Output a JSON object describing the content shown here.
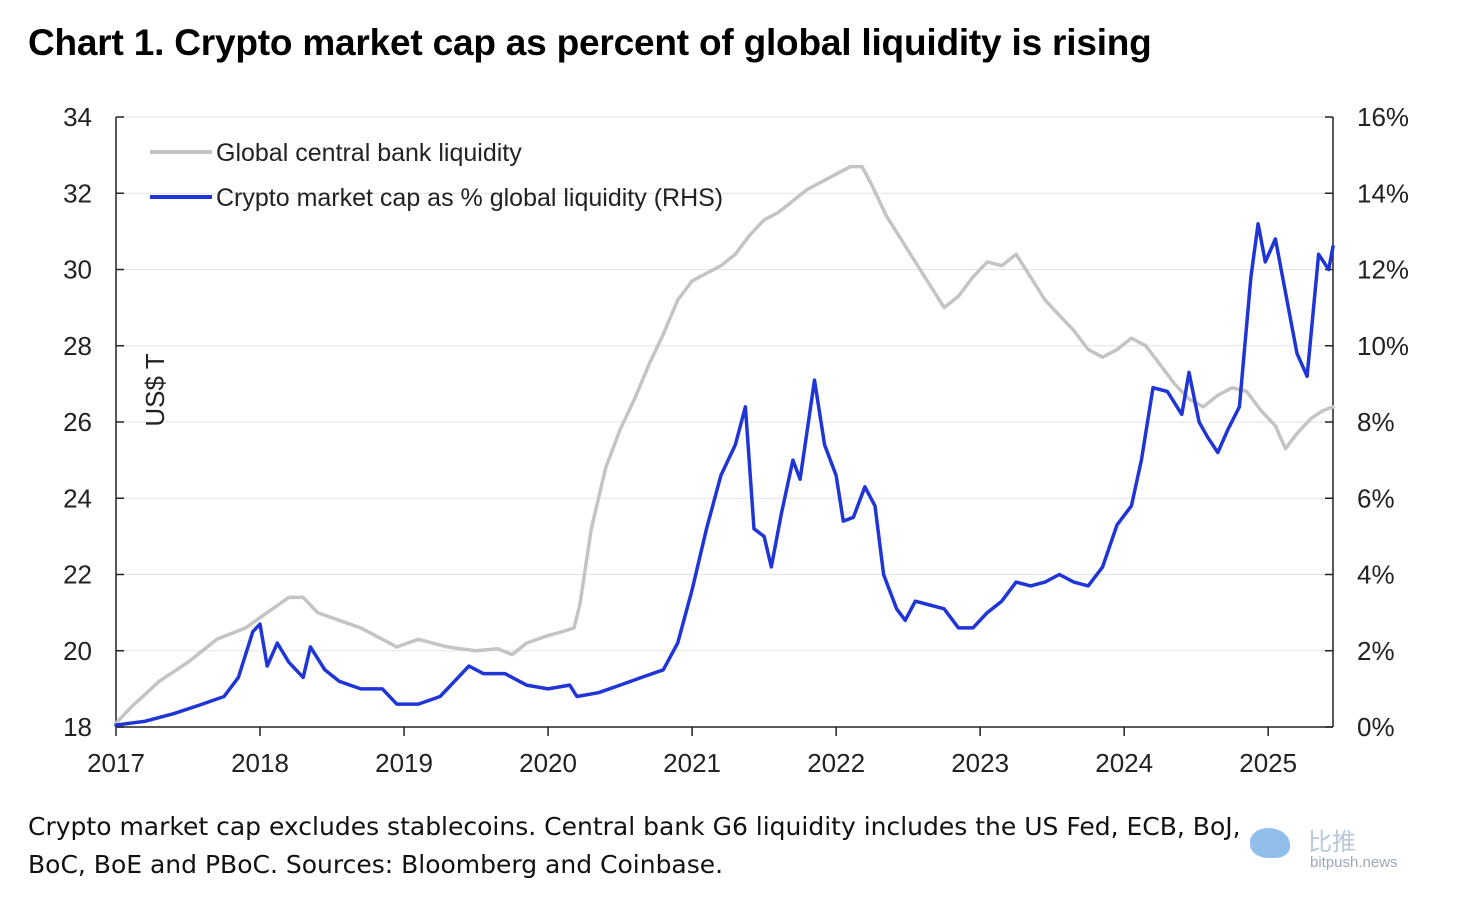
{
  "title": "Chart 1. Crypto market cap as percent of global liquidity is rising",
  "note_line1": "Crypto market cap excludes stablecoins. Central bank G6 liquidity includes the US Fed, ECB, BoJ,",
  "note_line2": "BoC, BoE and PBoC. Sources: Bloomberg and Coinbase.",
  "watermark": {
    "cn": "比推",
    "en": "bitpush.news"
  },
  "chart_data": {
    "type": "line",
    "title": "Chart 1. Crypto market cap as percent of global liquidity is rising",
    "xlabel": "",
    "ylabel_left": "US$ T",
    "ylabel_right": "",
    "x_range": [
      2017.0,
      2025.45
    ],
    "ylim_left": [
      18,
      34
    ],
    "ylim_right": [
      0,
      16
    ],
    "x_ticks": [
      2017,
      2018,
      2019,
      2020,
      2021,
      2022,
      2023,
      2024,
      2025
    ],
    "x_tick_labels": [
      "2017",
      "2018",
      "2019",
      "2020",
      "2021",
      "2022",
      "2023",
      "2024",
      "2025"
    ],
    "y_left_ticks": [
      18,
      20,
      22,
      24,
      26,
      28,
      30,
      32,
      34
    ],
    "y_left_tick_labels": [
      "18",
      "20",
      "22",
      "24",
      "26",
      "28",
      "30",
      "32",
      "34"
    ],
    "y_right_ticks": [
      0,
      2,
      4,
      6,
      8,
      10,
      12,
      14,
      16
    ],
    "y_right_tick_labels": [
      "0%",
      "2%",
      "4%",
      "6%",
      "8%",
      "10%",
      "12%",
      "14%",
      "16%"
    ],
    "grid": "horizontal",
    "legend_position": "top-left",
    "series": [
      {
        "name": "Global central bank liquidity",
        "axis": "left",
        "color": "#c4c4c4",
        "points": [
          [
            2017.0,
            18.1
          ],
          [
            2017.1,
            18.5
          ],
          [
            2017.3,
            19.2
          ],
          [
            2017.5,
            19.7
          ],
          [
            2017.7,
            20.3
          ],
          [
            2017.9,
            20.6
          ],
          [
            2018.05,
            21.0
          ],
          [
            2018.2,
            21.4
          ],
          [
            2018.3,
            21.4
          ],
          [
            2018.4,
            21.0
          ],
          [
            2018.55,
            20.8
          ],
          [
            2018.7,
            20.6
          ],
          [
            2018.85,
            20.3
          ],
          [
            2018.95,
            20.1
          ],
          [
            2019.1,
            20.3
          ],
          [
            2019.3,
            20.1
          ],
          [
            2019.5,
            20.0
          ],
          [
            2019.65,
            20.05
          ],
          [
            2019.75,
            19.9
          ],
          [
            2019.85,
            20.2
          ],
          [
            2020.0,
            20.4
          ],
          [
            2020.1,
            20.5
          ],
          [
            2020.18,
            20.6
          ],
          [
            2020.22,
            21.2
          ],
          [
            2020.3,
            23.2
          ],
          [
            2020.4,
            24.8
          ],
          [
            2020.5,
            25.8
          ],
          [
            2020.6,
            26.6
          ],
          [
            2020.7,
            27.5
          ],
          [
            2020.8,
            28.3
          ],
          [
            2020.9,
            29.2
          ],
          [
            2021.0,
            29.7
          ],
          [
            2021.1,
            29.9
          ],
          [
            2021.2,
            30.1
          ],
          [
            2021.3,
            30.4
          ],
          [
            2021.4,
            30.9
          ],
          [
            2021.5,
            31.3
          ],
          [
            2021.6,
            31.5
          ],
          [
            2021.7,
            31.8
          ],
          [
            2021.8,
            32.1
          ],
          [
            2021.9,
            32.3
          ],
          [
            2022.0,
            32.5
          ],
          [
            2022.1,
            32.7
          ],
          [
            2022.18,
            32.7
          ],
          [
            2022.25,
            32.2
          ],
          [
            2022.35,
            31.4
          ],
          [
            2022.45,
            30.8
          ],
          [
            2022.55,
            30.2
          ],
          [
            2022.65,
            29.6
          ],
          [
            2022.75,
            29.0
          ],
          [
            2022.85,
            29.3
          ],
          [
            2022.95,
            29.8
          ],
          [
            2023.05,
            30.2
          ],
          [
            2023.15,
            30.1
          ],
          [
            2023.25,
            30.4
          ],
          [
            2023.35,
            29.8
          ],
          [
            2023.45,
            29.2
          ],
          [
            2023.55,
            28.8
          ],
          [
            2023.65,
            28.4
          ],
          [
            2023.75,
            27.9
          ],
          [
            2023.85,
            27.7
          ],
          [
            2023.95,
            27.9
          ],
          [
            2024.05,
            28.2
          ],
          [
            2024.15,
            28.0
          ],
          [
            2024.25,
            27.5
          ],
          [
            2024.35,
            27.0
          ],
          [
            2024.45,
            26.6
          ],
          [
            2024.55,
            26.4
          ],
          [
            2024.65,
            26.7
          ],
          [
            2024.75,
            26.9
          ],
          [
            2024.85,
            26.8
          ],
          [
            2024.95,
            26.3
          ],
          [
            2025.05,
            25.9
          ],
          [
            2025.12,
            25.3
          ],
          [
            2025.2,
            25.7
          ],
          [
            2025.3,
            26.1
          ],
          [
            2025.38,
            26.3
          ],
          [
            2025.45,
            26.4
          ]
        ]
      },
      {
        "name": "Crypto market cap as % global liquidity (RHS)",
        "axis": "right",
        "color": "#1f35d6",
        "points": [
          [
            2017.0,
            0.05
          ],
          [
            2017.2,
            0.15
          ],
          [
            2017.4,
            0.35
          ],
          [
            2017.6,
            0.6
          ],
          [
            2017.75,
            0.8
          ],
          [
            2017.85,
            1.3
          ],
          [
            2017.95,
            2.5
          ],
          [
            2018.0,
            2.7
          ],
          [
            2018.05,
            1.6
          ],
          [
            2018.12,
            2.2
          ],
          [
            2018.2,
            1.7
          ],
          [
            2018.3,
            1.3
          ],
          [
            2018.35,
            2.1
          ],
          [
            2018.45,
            1.5
          ],
          [
            2018.55,
            1.2
          ],
          [
            2018.7,
            1.0
          ],
          [
            2018.85,
            1.0
          ],
          [
            2018.95,
            0.6
          ],
          [
            2019.1,
            0.6
          ],
          [
            2019.25,
            0.8
          ],
          [
            2019.35,
            1.2
          ],
          [
            2019.45,
            1.6
          ],
          [
            2019.55,
            1.4
          ],
          [
            2019.7,
            1.4
          ],
          [
            2019.85,
            1.1
          ],
          [
            2020.0,
            1.0
          ],
          [
            2020.15,
            1.1
          ],
          [
            2020.2,
            0.8
          ],
          [
            2020.35,
            0.9
          ],
          [
            2020.5,
            1.1
          ],
          [
            2020.65,
            1.3
          ],
          [
            2020.8,
            1.5
          ],
          [
            2020.9,
            2.2
          ],
          [
            2021.0,
            3.6
          ],
          [
            2021.1,
            5.2
          ],
          [
            2021.2,
            6.6
          ],
          [
            2021.3,
            7.4
          ],
          [
            2021.37,
            8.4
          ],
          [
            2021.43,
            5.2
          ],
          [
            2021.5,
            5.0
          ],
          [
            2021.55,
            4.2
          ],
          [
            2021.62,
            5.6
          ],
          [
            2021.7,
            7.0
          ],
          [
            2021.75,
            6.5
          ],
          [
            2021.85,
            9.1
          ],
          [
            2021.92,
            7.4
          ],
          [
            2022.0,
            6.6
          ],
          [
            2022.05,
            5.4
          ],
          [
            2022.12,
            5.5
          ],
          [
            2022.2,
            6.3
          ],
          [
            2022.27,
            5.8
          ],
          [
            2022.33,
            4.0
          ],
          [
            2022.42,
            3.1
          ],
          [
            2022.48,
            2.8
          ],
          [
            2022.55,
            3.3
          ],
          [
            2022.65,
            3.2
          ],
          [
            2022.75,
            3.1
          ],
          [
            2022.85,
            2.6
          ],
          [
            2022.95,
            2.6
          ],
          [
            2023.05,
            3.0
          ],
          [
            2023.15,
            3.3
          ],
          [
            2023.25,
            3.8
          ],
          [
            2023.35,
            3.7
          ],
          [
            2023.45,
            3.8
          ],
          [
            2023.55,
            4.0
          ],
          [
            2023.65,
            3.8
          ],
          [
            2023.75,
            3.7
          ],
          [
            2023.85,
            4.2
          ],
          [
            2023.95,
            5.3
          ],
          [
            2024.05,
            5.8
          ],
          [
            2024.12,
            7.0
          ],
          [
            2024.2,
            8.9
          ],
          [
            2024.3,
            8.8
          ],
          [
            2024.4,
            8.2
          ],
          [
            2024.45,
            9.3
          ],
          [
            2024.52,
            8.0
          ],
          [
            2024.58,
            7.6
          ],
          [
            2024.65,
            7.2
          ],
          [
            2024.72,
            7.8
          ],
          [
            2024.8,
            8.4
          ],
          [
            2024.88,
            11.8
          ],
          [
            2024.93,
            13.2
          ],
          [
            2024.98,
            12.2
          ],
          [
            2025.05,
            12.8
          ],
          [
            2025.12,
            11.4
          ],
          [
            2025.2,
            9.8
          ],
          [
            2025.27,
            9.2
          ],
          [
            2025.35,
            12.4
          ],
          [
            2025.42,
            12.0
          ],
          [
            2025.45,
            12.6
          ]
        ]
      }
    ]
  }
}
